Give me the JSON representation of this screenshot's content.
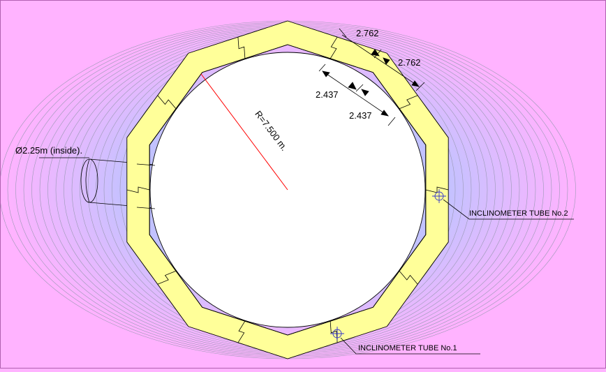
{
  "dimensions": {
    "segment_outer_1": "2.762",
    "segment_outer_2": "2.762",
    "segment_inner_1": "2.437",
    "segment_inner_2": "2.437",
    "radius": "R=7.500 m.",
    "pipe_diameter": "Ø2.25m (inside)."
  },
  "labels": {
    "inclinometer_1": "INCLINOMETER TUBE No.1",
    "inclinometer_2": "INCLINOMETER TUBE No.2"
  },
  "colors": {
    "background": "#ffb3ff",
    "ground_center": "#b7c8ff",
    "segment_fill": "#ffff99",
    "radius_line": "#ff0000",
    "marker": "#3333cc"
  }
}
